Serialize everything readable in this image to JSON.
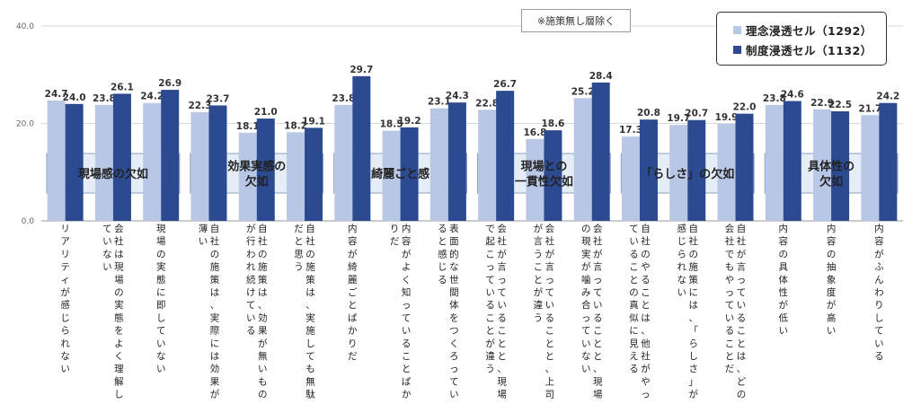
{
  "colors": {
    "series1": "#b8c7e6",
    "series2": "#2c4a8f",
    "group_fill": "#e5edf7",
    "group_border": "#8a9fbf",
    "grid": "#d9d9d9",
    "text": "#333333"
  },
  "note": "※施策無し層除く",
  "chart_data": {
    "type": "bar",
    "ylim": [
      0,
      40
    ],
    "y_ticks": [
      "0.0",
      "20.0",
      "40.0"
    ],
    "categories": [
      "リアリティが感じられない",
      "会社は現場の実態をよく理解していない",
      "現場の実態に即していない",
      "自社の施策は、実際には効果が薄い",
      "自社の施策は、効果が無いものが行われ続けている",
      "自社の施策は、実施しても無駄だと思う",
      "内容が綺麗ごとばかりだ",
      "内容がよく知っていることばかりだ",
      "表面的な世間体をつくろっていると感じる",
      "会社が言っていることと、現場で起こっていることが違う",
      "会社が言っていることと、上司が言うことが違う",
      "会社が言っていることと、現場の現実が噛み合っていない",
      "自社のやることは、他社がやっていることの真似に見える",
      "自社の施策には、「らしさ」が感じられない",
      "自社が言っていることは、どの会社でもやっていることだ",
      "内容の具体性が低い",
      "内容の抽象度が高い",
      "内容がふんわりしている"
    ],
    "groups": [
      {
        "label": "現場感の欠如",
        "start": 0,
        "end": 2
      },
      {
        "label": "効果実感の\n欠如",
        "start": 3,
        "end": 5
      },
      {
        "label": "綺麗ごと感",
        "start": 6,
        "end": 8
      },
      {
        "label": "現場との\n一貫性欠如",
        "start": 9,
        "end": 11
      },
      {
        "label": "「らしさ」の欠如",
        "start": 12,
        "end": 14
      },
      {
        "label": "具体性の\n欠如",
        "start": 15,
        "end": 17
      }
    ],
    "series": [
      {
        "name": "理念浸透セル（1292）",
        "values": [
          24.7,
          23.8,
          24.2,
          22.3,
          18.1,
          18.2,
          23.8,
          18.5,
          23.1,
          22.8,
          16.8,
          25.2,
          17.3,
          19.7,
          19.9,
          23.8,
          22.9,
          21.7
        ]
      },
      {
        "name": "制度浸透セル（1132）",
        "values": [
          24.0,
          26.1,
          26.9,
          23.7,
          21.0,
          19.1,
          29.7,
          19.2,
          24.3,
          26.7,
          18.6,
          28.4,
          20.8,
          20.7,
          22.0,
          24.6,
          22.5,
          24.2
        ]
      }
    ]
  }
}
